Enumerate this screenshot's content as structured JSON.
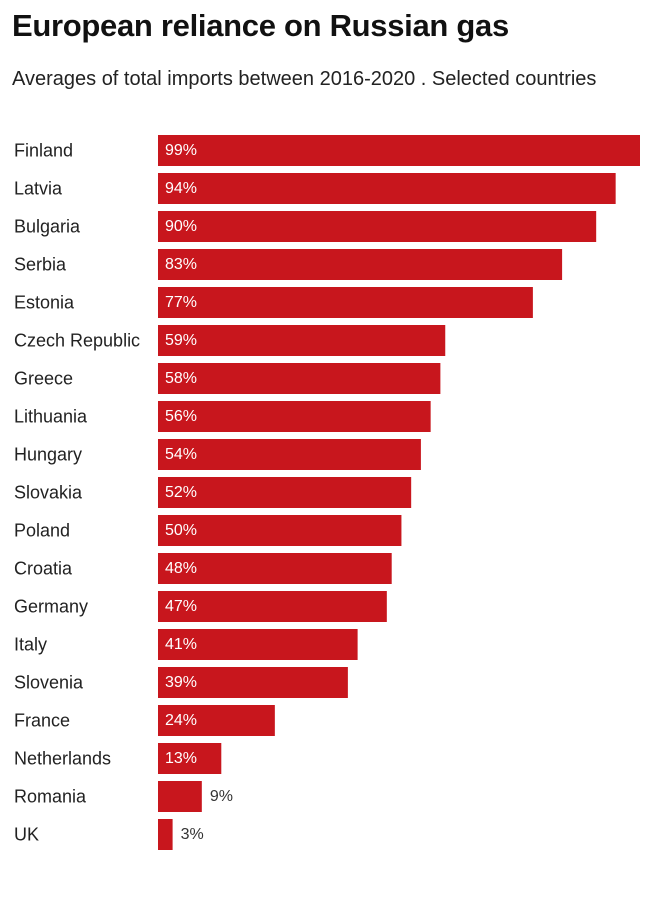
{
  "chart_data": {
    "type": "bar",
    "orientation": "horizontal",
    "title": "European reliance on Russian gas",
    "subtitle": "Averages of total imports between 2016-2020 . Selected countries",
    "categories": [
      "Finland",
      "Latvia",
      "Bulgaria",
      "Serbia",
      "Estonia",
      "Czech Republic",
      "Greece",
      "Lithuania",
      "Hungary",
      "Slovakia",
      "Poland",
      "Croatia",
      "Germany",
      "Italy",
      "Slovenia",
      "France",
      "Netherlands",
      "Romania",
      "UK"
    ],
    "values": [
      99,
      94,
      90,
      83,
      77,
      59,
      58,
      56,
      54,
      52,
      50,
      48,
      47,
      41,
      39,
      24,
      13,
      9,
      3
    ],
    "labels": [
      "99%",
      "94%",
      "90%",
      "83%",
      "77%",
      "59%",
      "58%",
      "56%",
      "54%",
      "52%",
      "50%",
      "48%",
      "47%",
      "41%",
      "39%",
      "24%",
      "13%",
      "9%",
      "3%"
    ],
    "xlabel": "",
    "ylabel": "",
    "xlim": [
      0,
      99
    ],
    "grid": false,
    "bar_color": "#c8161d",
    "inside_label_color": "#ffffff",
    "outside_label_color": "#333333"
  }
}
